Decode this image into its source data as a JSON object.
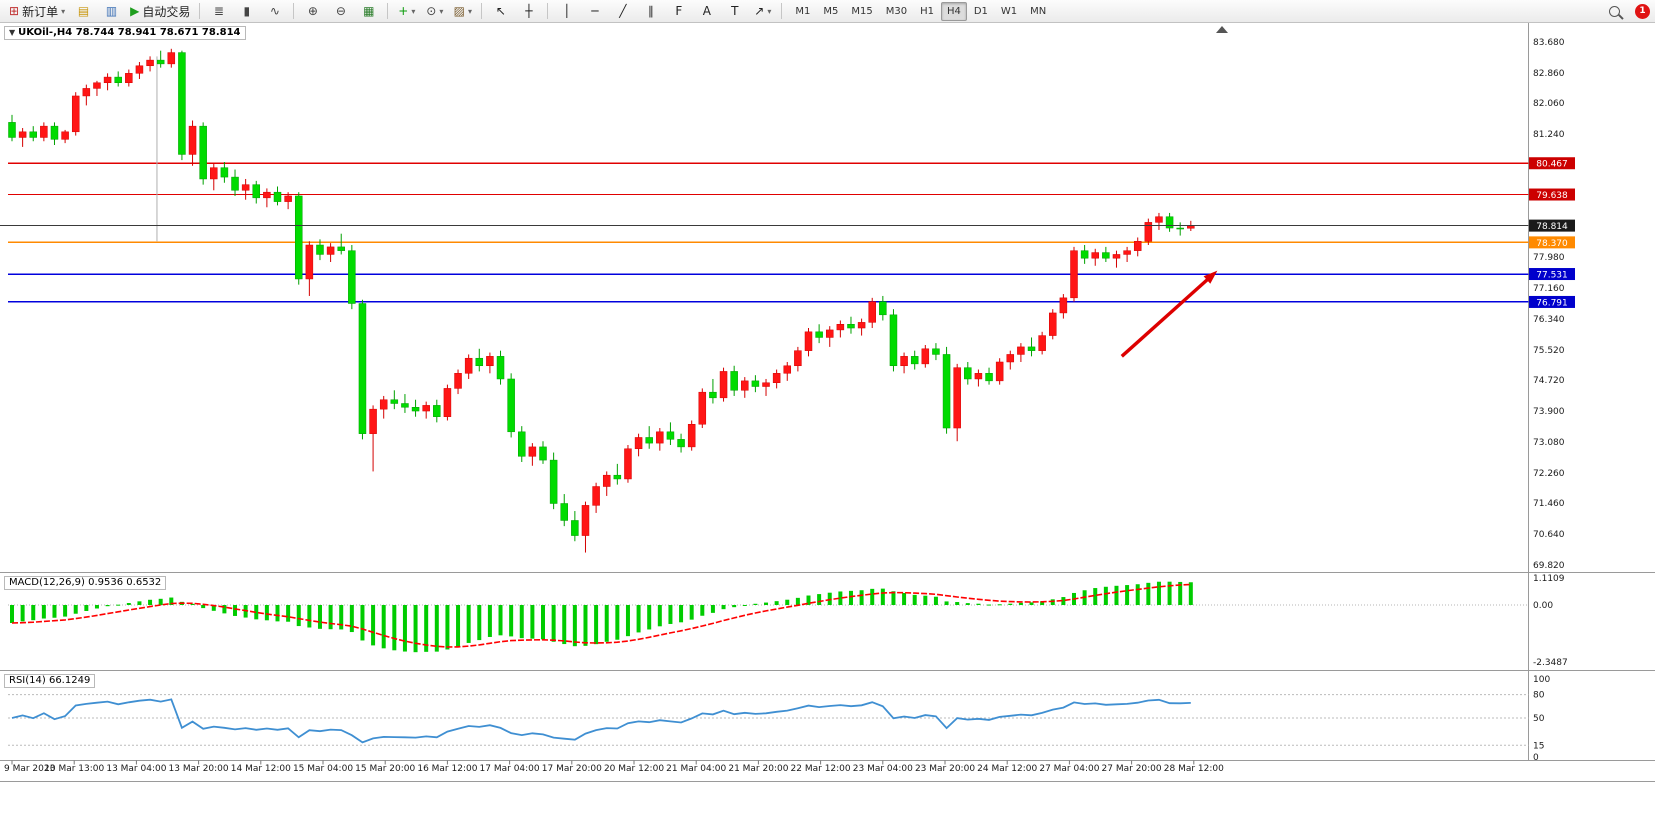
{
  "icons": {
    "triangle_down": "▼",
    "triangle_down_small": "▾"
  },
  "toolbar": {
    "items": [
      {
        "t": "labeled",
        "name": "new-order-button",
        "icon": "new-order-icon",
        "glyph": "⊞",
        "color": "#c03030",
        "label": "新订单",
        "drop": true
      },
      {
        "t": "icon",
        "name": "market-watch-icon",
        "glyph": "▤",
        "color": "#c8960c"
      },
      {
        "t": "icon",
        "name": "data-window-icon",
        "glyph": "▥",
        "color": "#3b6fb5"
      },
      {
        "t": "labeled",
        "name": "autotrading-button",
        "icon": "autotrading-icon",
        "glyph": "▶",
        "color": "#1f9e1f",
        "label": "自动交易",
        "drop": false
      },
      {
        "t": "sep"
      },
      {
        "t": "icon",
        "name": "bar-chart-icon",
        "glyph": "≣",
        "color": "#444"
      },
      {
        "t": "icon",
        "name": "candlestick-chart-icon",
        "glyph": "▮",
        "color": "#444"
      },
      {
        "t": "icon",
        "name": "line-chart-icon",
        "glyph": "∿",
        "color": "#444"
      },
      {
        "t": "sep"
      },
      {
        "t": "icon",
        "name": "zoom-in-icon",
        "glyph": "⊕",
        "color": "#444"
      },
      {
        "t": "icon",
        "name": "zoom-out-icon",
        "glyph": "⊖",
        "color": "#444"
      },
      {
        "t": "icon",
        "name": "tile-windows-icon",
        "glyph": "▦",
        "color": "#2a7d2a"
      },
      {
        "t": "sep"
      },
      {
        "t": "icon",
        "name": "indicators-icon",
        "glyph": "+",
        "color": "#0a9c0a",
        "drop": true
      },
      {
        "t": "icon",
        "name": "periods-icon",
        "glyph": "⊙",
        "color": "#444",
        "drop": true
      },
      {
        "t": "icon",
        "name": "templates-icon",
        "glyph": "▨",
        "color": "#7a5c2e",
        "drop": true
      },
      {
        "t": "sep"
      },
      {
        "t": "icon",
        "name": "cursor-icon",
        "glyph": "↖",
        "color": "#222"
      },
      {
        "t": "icon",
        "name": "crosshair-icon",
        "glyph": "┼",
        "color": "#222"
      },
      {
        "t": "sep"
      },
      {
        "t": "icon",
        "name": "vertical-line-icon",
        "glyph": "│",
        "color": "#222"
      },
      {
        "t": "icon",
        "name": "horizontal-line-icon",
        "glyph": "─",
        "color": "#222"
      },
      {
        "t": "icon",
        "name": "trendline-icon",
        "glyph": "╱",
        "color": "#222"
      },
      {
        "t": "icon",
        "name": "equidistant-channel-icon",
        "glyph": "∥",
        "color": "#222"
      },
      {
        "t": "icon",
        "name": "fibonacci-icon",
        "glyph": "F",
        "color": "#222"
      },
      {
        "t": "icon",
        "name": "text-label-icon",
        "glyph": "A",
        "color": "#222"
      },
      {
        "t": "icon",
        "name": "text-box-icon",
        "glyph": "T",
        "color": "#222"
      },
      {
        "t": "icon",
        "name": "arrows-icon",
        "glyph": "↗",
        "color": "#222",
        "drop": true
      },
      {
        "t": "sep"
      },
      {
        "t": "tf"
      },
      {
        "t": "spacer"
      },
      {
        "t": "search"
      },
      {
        "t": "badge"
      }
    ],
    "timeframes": {
      "items": [
        "M1",
        "M5",
        "M15",
        "M30",
        "H1",
        "H4",
        "D1",
        "W1",
        "MN"
      ],
      "active": "H4"
    },
    "notification_count": "1"
  },
  "chart": {
    "symbol": "UKOil-",
    "period": "H4",
    "title": "UKOil-,H4 78.744 78.941 78.671 78.814",
    "ohlc": {
      "open": "78.744",
      "high": "78.941",
      "low": "78.671",
      "close": "78.814"
    }
  },
  "indicators": {
    "macd": {
      "name": "MACD",
      "params": "12,26,9",
      "main_value": "0.9536",
      "signal_value": "0.6532",
      "full_label": "MACD(12,26,9) 0.9536 0.6532",
      "scale_labels": [
        "1.1109",
        "0.00",
        "-2.3487"
      ],
      "max": 1.1109,
      "min": -2.3487
    },
    "rsi": {
      "name": "RSI",
      "params": "14",
      "value": "66.1249",
      "full_label": "RSI(14) 66.1249",
      "scale_labels": [
        "100",
        "80",
        "50",
        "15",
        "0"
      ],
      "levels": [
        80,
        50,
        15
      ]
    }
  },
  "chart_data": {
    "type": "candlestick",
    "symbol": "UKOil-",
    "timeframe": "H4",
    "price_axis": {
      "max": 83.68,
      "min": 69.82,
      "labels": [
        "83.680",
        "82.860",
        "82.060",
        "81.240",
        "77.980",
        "77.160",
        "76.340",
        "75.520",
        "74.720",
        "73.900",
        "73.080",
        "72.260",
        "71.460",
        "70.640",
        "69.820"
      ]
    },
    "time_axis": [
      "9 Mar 2023",
      "10 Mar 13:00",
      "13 Mar 04:00",
      "13 Mar 20:00",
      "14 Mar 12:00",
      "15 Mar 04:00",
      "15 Mar 20:00",
      "16 Mar 12:00",
      "17 Mar 04:00",
      "17 Mar 20:00",
      "20 Mar 12:00",
      "21 Mar 04:00",
      "21 Mar 20:00",
      "22 Mar 12:00",
      "23 Mar 04:00",
      "23 Mar 20:00",
      "24 Mar 12:00",
      "27 Mar 04:00",
      "27 Mar 20:00",
      "28 Mar 12:00"
    ],
    "hlines": [
      {
        "price": 80.467,
        "color": "#e00000",
        "width": 1.2,
        "label": "80.467",
        "badge_bg": "#cc0000",
        "badge_fg": "#ffffff",
        "name": "resistance-line-80467"
      },
      {
        "price": 79.638,
        "color": "#e00000",
        "width": 1.2,
        "label": "79.638",
        "badge_bg": "#cc0000",
        "badge_fg": "#ffffff",
        "name": "resistance-line-79638"
      },
      {
        "price": 78.37,
        "color": "#ff8a00",
        "width": 1.5,
        "label": "78.370",
        "badge_bg": "#ff8a00",
        "badge_fg": "#ffffff",
        "name": "support-line-78370"
      },
      {
        "price": 77.531,
        "color": "#0000dd",
        "width": 1.5,
        "label": "77.531",
        "badge_bg": "#0000cc",
        "badge_fg": "#ffffff",
        "name": "support-line-77531"
      },
      {
        "price": 76.791,
        "color": "#0000dd",
        "width": 1.5,
        "label": "76.791",
        "badge_bg": "#0000cc",
        "badge_fg": "#ffffff",
        "name": "support-line-76791"
      }
    ],
    "bid_line": {
      "price": 78.814,
      "color": "#3a3a3a",
      "label": "78.814",
      "badge_bg": "#1a1a1a",
      "badge_fg": "#ffffff"
    },
    "vline": {
      "index": 13.65,
      "from": 83.3,
      "to": 78.4
    },
    "arrow": {
      "i1": 104.5,
      "p1": 75.35,
      "i2": 113.5,
      "p2": 77.62
    },
    "colors": {
      "up_fill": "#ff1515",
      "up_stroke": "#d40000",
      "down_fill": "#00db00",
      "down_stroke": "#00a000",
      "macd_bar": "#00cc00",
      "macd_signal": "#ff0000",
      "rsi_line": "#3f8fd2",
      "arrow": "#dd0000"
    },
    "candles": [
      [
        81.55,
        81.75,
        81.05,
        81.15
      ],
      [
        81.15,
        81.4,
        80.9,
        81.3
      ],
      [
        81.3,
        81.45,
        81.05,
        81.15
      ],
      [
        81.15,
        81.55,
        81.05,
        81.45
      ],
      [
        81.45,
        81.55,
        80.95,
        81.1
      ],
      [
        81.1,
        81.35,
        81.0,
        81.3
      ],
      [
        81.3,
        82.35,
        81.2,
        82.25
      ],
      [
        82.25,
        82.55,
        82.0,
        82.45
      ],
      [
        82.45,
        82.65,
        82.25,
        82.6
      ],
      [
        82.6,
        82.85,
        82.4,
        82.75
      ],
      [
        82.75,
        82.9,
        82.5,
        82.6
      ],
      [
        82.6,
        82.95,
        82.5,
        82.85
      ],
      [
        82.85,
        83.15,
        82.7,
        83.05
      ],
      [
        83.05,
        83.3,
        82.9,
        83.2
      ],
      [
        83.2,
        83.45,
        83.0,
        83.1
      ],
      [
        83.1,
        83.5,
        83.0,
        83.4
      ],
      [
        83.4,
        83.45,
        80.55,
        80.7
      ],
      [
        80.7,
        81.6,
        80.4,
        81.45
      ],
      [
        81.45,
        81.55,
        79.9,
        80.05
      ],
      [
        80.05,
        80.45,
        79.75,
        80.35
      ],
      [
        80.35,
        80.5,
        79.95,
        80.1
      ],
      [
        80.1,
        80.3,
        79.6,
        79.75
      ],
      [
        79.75,
        80.05,
        79.5,
        79.9
      ],
      [
        79.9,
        80.0,
        79.4,
        79.55
      ],
      [
        79.55,
        79.8,
        79.3,
        79.7
      ],
      [
        79.7,
        79.85,
        79.35,
        79.45
      ],
      [
        79.45,
        79.7,
        79.25,
        79.6
      ],
      [
        79.6,
        79.7,
        77.25,
        77.4
      ],
      [
        77.4,
        78.4,
        76.95,
        78.3
      ],
      [
        78.3,
        78.45,
        77.9,
        78.05
      ],
      [
        78.05,
        78.35,
        77.85,
        78.25
      ],
      [
        78.25,
        78.6,
        78.05,
        78.15
      ],
      [
        78.15,
        78.3,
        76.6,
        76.75
      ],
      [
        76.75,
        76.85,
        73.15,
        73.3
      ],
      [
        73.3,
        74.05,
        72.3,
        73.95
      ],
      [
        73.95,
        74.3,
        73.7,
        74.2
      ],
      [
        74.2,
        74.45,
        73.95,
        74.1
      ],
      [
        74.1,
        74.35,
        73.85,
        74.0
      ],
      [
        74.0,
        74.2,
        73.75,
        73.9
      ],
      [
        73.9,
        74.15,
        73.7,
        74.05
      ],
      [
        74.05,
        74.2,
        73.6,
        73.75
      ],
      [
        73.75,
        74.6,
        73.65,
        74.5
      ],
      [
        74.5,
        75.0,
        74.35,
        74.9
      ],
      [
        74.9,
        75.4,
        74.75,
        75.3
      ],
      [
        75.3,
        75.55,
        74.95,
        75.1
      ],
      [
        75.1,
        75.45,
        74.9,
        75.35
      ],
      [
        75.35,
        75.5,
        74.6,
        74.75
      ],
      [
        74.75,
        74.9,
        73.2,
        73.35
      ],
      [
        73.35,
        73.5,
        72.55,
        72.7
      ],
      [
        72.7,
        73.05,
        72.45,
        72.95
      ],
      [
        72.95,
        73.1,
        72.5,
        72.6
      ],
      [
        72.6,
        72.8,
        71.3,
        71.45
      ],
      [
        71.45,
        71.7,
        70.85,
        71.0
      ],
      [
        71.0,
        71.25,
        70.45,
        70.6
      ],
      [
        70.6,
        71.5,
        70.15,
        71.4
      ],
      [
        71.4,
        72.0,
        71.2,
        71.9
      ],
      [
        71.9,
        72.3,
        71.65,
        72.2
      ],
      [
        72.2,
        72.5,
        71.95,
        72.1
      ],
      [
        72.1,
        73.0,
        72.0,
        72.9
      ],
      [
        72.9,
        73.3,
        72.7,
        73.2
      ],
      [
        73.2,
        73.5,
        72.9,
        73.05
      ],
      [
        73.05,
        73.45,
        72.85,
        73.35
      ],
      [
        73.35,
        73.6,
        73.0,
        73.15
      ],
      [
        73.15,
        73.3,
        72.8,
        72.95
      ],
      [
        72.95,
        73.65,
        72.85,
        73.55
      ],
      [
        73.55,
        74.5,
        73.45,
        74.4
      ],
      [
        74.4,
        74.75,
        74.1,
        74.25
      ],
      [
        74.25,
        75.05,
        74.15,
        74.95
      ],
      [
        74.95,
        75.1,
        74.3,
        74.45
      ],
      [
        74.45,
        74.8,
        74.25,
        74.7
      ],
      [
        74.7,
        74.85,
        74.4,
        74.55
      ],
      [
        74.55,
        74.75,
        74.3,
        74.65
      ],
      [
        74.65,
        75.0,
        74.5,
        74.9
      ],
      [
        74.9,
        75.2,
        74.7,
        75.1
      ],
      [
        75.1,
        75.6,
        74.95,
        75.5
      ],
      [
        75.5,
        76.1,
        75.35,
        76.0
      ],
      [
        76.0,
        76.2,
        75.7,
        75.85
      ],
      [
        75.85,
        76.15,
        75.6,
        76.05
      ],
      [
        76.05,
        76.3,
        75.85,
        76.2
      ],
      [
        76.2,
        76.4,
        75.95,
        76.1
      ],
      [
        76.1,
        76.35,
        75.9,
        76.25
      ],
      [
        76.25,
        76.9,
        76.1,
        76.8
      ],
      [
        76.8,
        76.95,
        76.3,
        76.45
      ],
      [
        76.45,
        76.6,
        74.95,
        75.1
      ],
      [
        75.1,
        75.45,
        74.9,
        75.35
      ],
      [
        75.35,
        75.5,
        75.0,
        75.15
      ],
      [
        75.15,
        75.65,
        75.05,
        75.55
      ],
      [
        75.55,
        75.7,
        75.25,
        75.4
      ],
      [
        75.4,
        75.6,
        73.3,
        73.45
      ],
      [
        73.45,
        75.15,
        73.1,
        75.05
      ],
      [
        75.05,
        75.2,
        74.6,
        74.75
      ],
      [
        74.75,
        75.0,
        74.55,
        74.9
      ],
      [
        74.9,
        75.05,
        74.6,
        74.7
      ],
      [
        74.7,
        75.3,
        74.6,
        75.2
      ],
      [
        75.2,
        75.5,
        75.0,
        75.4
      ],
      [
        75.4,
        75.7,
        75.2,
        75.6
      ],
      [
        75.6,
        75.85,
        75.35,
        75.5
      ],
      [
        75.5,
        76.0,
        75.4,
        75.9
      ],
      [
        75.9,
        76.6,
        75.8,
        76.5
      ],
      [
        76.5,
        77.0,
        76.35,
        76.9
      ],
      [
        76.9,
        78.25,
        76.8,
        78.15
      ],
      [
        78.15,
        78.3,
        77.8,
        77.95
      ],
      [
        77.95,
        78.2,
        77.75,
        78.1
      ],
      [
        78.1,
        78.25,
        77.85,
        77.95
      ],
      [
        77.95,
        78.15,
        77.7,
        78.05
      ],
      [
        78.05,
        78.25,
        77.85,
        78.15
      ],
      [
        78.15,
        78.5,
        78.0,
        78.4
      ],
      [
        78.4,
        79.0,
        78.3,
        78.9
      ],
      [
        78.9,
        79.15,
        78.7,
        79.05
      ],
      [
        79.05,
        79.15,
        78.65,
        78.75
      ],
      [
        78.75,
        78.9,
        78.55,
        78.74
      ],
      [
        78.744,
        78.941,
        78.671,
        78.814
      ]
    ]
  }
}
